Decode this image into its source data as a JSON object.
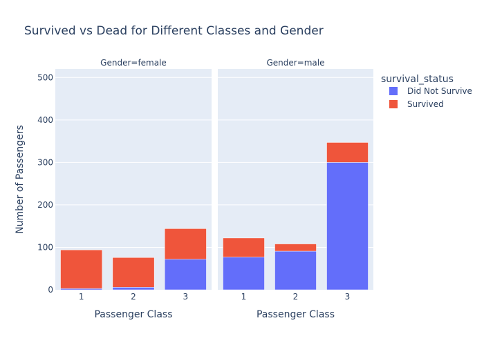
{
  "chart_data": {
    "type": "bar",
    "stacked": true,
    "title": "Survived vs Dead for Different Classes and Gender",
    "xlabel": "Passenger Class",
    "ylabel": "Number of Passengers",
    "ylim": [
      0,
      520
    ],
    "yticks": [
      0,
      100,
      200,
      300,
      400,
      500
    ],
    "categories": [
      "1",
      "2",
      "3"
    ],
    "legend": {
      "title": "survival_status",
      "placement": "right"
    },
    "facets": [
      {
        "label": "Gender=female",
        "series": [
          {
            "name": "Did Not Survive",
            "color": "#636efa",
            "values": [
              3,
              6,
              72
            ]
          },
          {
            "name": "Survived",
            "color": "#ef553b",
            "values": [
              91,
              70,
              72
            ]
          }
        ]
      },
      {
        "label": "Gender=male",
        "series": [
          {
            "name": "Did Not Survive",
            "color": "#636efa",
            "values": [
              77,
              91,
              300
            ]
          },
          {
            "name": "Survived",
            "color": "#ef553b",
            "values": [
              45,
              17,
              47
            ]
          }
        ]
      }
    ]
  }
}
